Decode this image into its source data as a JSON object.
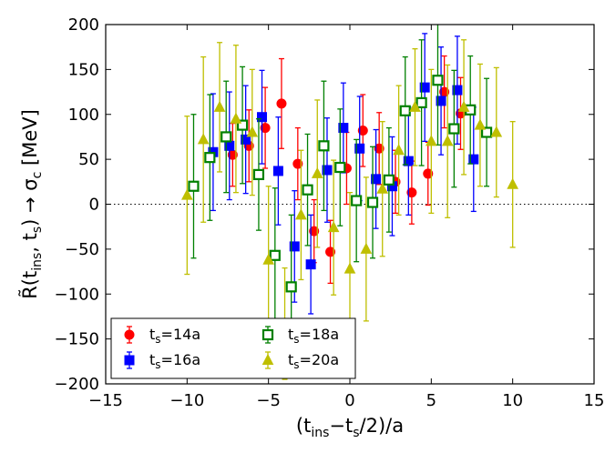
{
  "chart_data": {
    "type": "scatter",
    "title": "",
    "xlabel": "(t_ins−t_s/2)/a",
    "ylabel": "R̃(t_ins, t_s) → σ_c [MeV]",
    "xlim": [
      -15,
      15
    ],
    "ylim": [
      -200,
      200
    ],
    "xticks": [
      -15,
      -10,
      -5,
      0,
      5,
      10,
      15
    ],
    "yticks": [
      -200,
      -150,
      -100,
      -50,
      0,
      50,
      100,
      150,
      200
    ],
    "xtick_labels": [
      "−15",
      "−10",
      "−5",
      "0",
      "5",
      "10",
      "15"
    ],
    "ytick_labels": [
      "−200",
      "−150",
      "−100",
      "−50",
      "0",
      "50",
      "100",
      "150",
      "200"
    ],
    "reference_line_y": 0,
    "legend_position": "lower-left",
    "series": [
      {
        "name": "t_s=14a",
        "label_main": "t",
        "label_sub": "s",
        "label_rest": "=14a",
        "color": "#ff0000",
        "marker": "circle",
        "x": [
          -7,
          -6,
          -5,
          -4,
          -3,
          -2,
          -1,
          0,
          1,
          2,
          3,
          4,
          5,
          6,
          7
        ],
        "y": [
          55,
          65,
          85,
          112,
          45,
          -30,
          -53,
          40,
          82,
          62,
          25,
          13,
          34,
          125,
          101
        ],
        "err": [
          35,
          40,
          45,
          50,
          40,
          35,
          35,
          40,
          40,
          40,
          35,
          35,
          35,
          40,
          40
        ]
      },
      {
        "name": "t_s=16a",
        "label_main": "t",
        "label_sub": "s",
        "label_rest": "=16a",
        "color": "#0000ff",
        "marker": "square",
        "x": [
          -8,
          -7,
          -6,
          -5,
          -4,
          -3,
          -2,
          -1,
          0,
          1,
          2,
          3,
          4,
          5,
          6,
          7,
          8
        ],
        "y": [
          58,
          65,
          72,
          97,
          37,
          -47,
          -67,
          38,
          85,
          62,
          28,
          20,
          48,
          130,
          115,
          127,
          50
        ],
        "err": [
          65,
          60,
          60,
          52,
          60,
          62,
          55,
          58,
          50,
          58,
          55,
          55,
          60,
          60,
          60,
          60,
          58
        ]
      },
      {
        "name": "t_s=18a",
        "label_main": "t",
        "label_sub": "s",
        "label_rest": "=18a",
        "color": "#008000",
        "marker": "square-open",
        "x": [
          -9,
          -8,
          -7,
          -6,
          -5,
          -4,
          -3,
          -2,
          -1,
          0,
          1,
          2,
          3,
          4,
          5,
          6,
          7,
          8,
          9
        ],
        "y": [
          20,
          52,
          75,
          88,
          33,
          -57,
          -92,
          16,
          65,
          41,
          4,
          2,
          27,
          104,
          113,
          138,
          84,
          105,
          80
        ],
        "err": [
          80,
          70,
          62,
          65,
          62,
          75,
          80,
          62,
          72,
          65,
          68,
          62,
          58,
          60,
          70,
          72,
          65,
          60,
          60
        ]
      },
      {
        "name": "t_s=20a",
        "label_main": "t",
        "label_sub": "s",
        "label_rest": "=20a",
        "color": "#bfbf00",
        "marker": "triangle",
        "x": [
          -10,
          -9,
          -8,
          -7,
          -6,
          -5,
          -4,
          -3,
          -2,
          -1,
          0,
          1,
          2,
          3,
          4,
          5,
          6,
          7,
          8,
          9,
          10
        ],
        "y": [
          10,
          72,
          108,
          95,
          80,
          -62,
          -133,
          -12,
          34,
          -26,
          -72,
          -50,
          17,
          60,
          108,
          70,
          70,
          108,
          88,
          80,
          22
        ],
        "err": [
          88,
          92,
          72,
          82,
          70,
          82,
          62,
          72,
          82,
          75,
          85,
          80,
          75,
          72,
          65,
          80,
          85,
          75,
          68,
          72,
          70
        ]
      }
    ]
  }
}
